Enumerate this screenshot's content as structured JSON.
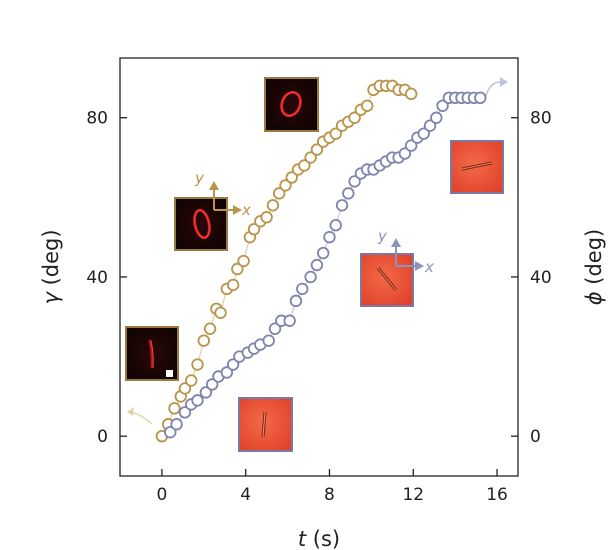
{
  "chart_data": {
    "type": "scatter",
    "xlabel_var": "t",
    "xlabel_unit": " (s)",
    "ylabel_left_var": "γ",
    "ylabel_left_unit": " (deg)",
    "ylabel_right_var": "ϕ",
    "ylabel_right_unit": " (deg)",
    "xlim": [
      -2,
      17
    ],
    "ylim": [
      -10,
      95
    ],
    "x_ticks": [
      0,
      4,
      8,
      12,
      16
    ],
    "y_ticks": [
      0,
      40,
      80
    ],
    "grid": false,
    "colors": {
      "gamma": "#b8954a",
      "phi": "#7f84ad",
      "gamma_inset_frame": "#9c7a3c",
      "phi_inset_frame": "#7a78a8"
    },
    "series": [
      {
        "axis": "left",
        "x": [
          0.0,
          0.3,
          0.6,
          0.9,
          1.1,
          1.4,
          1.7,
          2.0,
          2.3,
          2.6,
          2.8,
          3.1,
          3.4,
          3.6,
          3.9,
          4.2,
          4.4,
          4.7,
          5.0,
          5.3,
          5.6,
          5.9,
          6.2,
          6.5,
          6.8,
          7.1,
          7.4,
          7.7,
          8.0,
          8.3,
          8.6,
          8.9,
          9.2,
          9.5,
          9.8,
          10.1,
          10.4,
          10.7,
          11.0,
          11.3,
          11.6,
          11.9
        ],
        "y": [
          0,
          3,
          7,
          10,
          12,
          14,
          18,
          24,
          27,
          32,
          31,
          37,
          38,
          42,
          44,
          50,
          52,
          54,
          55,
          58,
          61,
          63,
          65,
          67,
          68,
          70,
          72,
          74,
          75,
          76,
          78,
          79,
          80,
          82,
          83,
          87,
          88,
          88,
          88,
          87,
          87,
          86
        ]
      },
      {
        "axis": "right",
        "x": [
          0.4,
          0.7,
          1.1,
          1.4,
          1.7,
          2.1,
          2.4,
          2.7,
          3.1,
          3.4,
          3.7,
          4.1,
          4.4,
          4.7,
          5.1,
          5.4,
          5.7,
          6.1,
          6.4,
          6.7,
          7.1,
          7.4,
          7.7,
          8.0,
          8.3,
          8.6,
          8.9,
          9.2,
          9.5,
          9.8,
          10.1,
          10.4,
          10.7,
          11.0,
          11.3,
          11.6,
          11.9,
          12.2,
          12.5,
          12.8,
          13.1,
          13.4,
          13.7,
          14.0,
          14.3,
          14.6,
          14.9,
          15.2
        ],
        "y": [
          1,
          3,
          6,
          8,
          9,
          11,
          13,
          15,
          16,
          18,
          20,
          21,
          22,
          23,
          24,
          27,
          29,
          29,
          34,
          37,
          40,
          43,
          46,
          50,
          53,
          58,
          61,
          64,
          66,
          67,
          67,
          68,
          69,
          70,
          70,
          71,
          73,
          75,
          76,
          78,
          80,
          83,
          85,
          85,
          85,
          85,
          85,
          85
        ]
      }
    ],
    "inset_labels": {
      "y": "y",
      "x": "x"
    }
  }
}
